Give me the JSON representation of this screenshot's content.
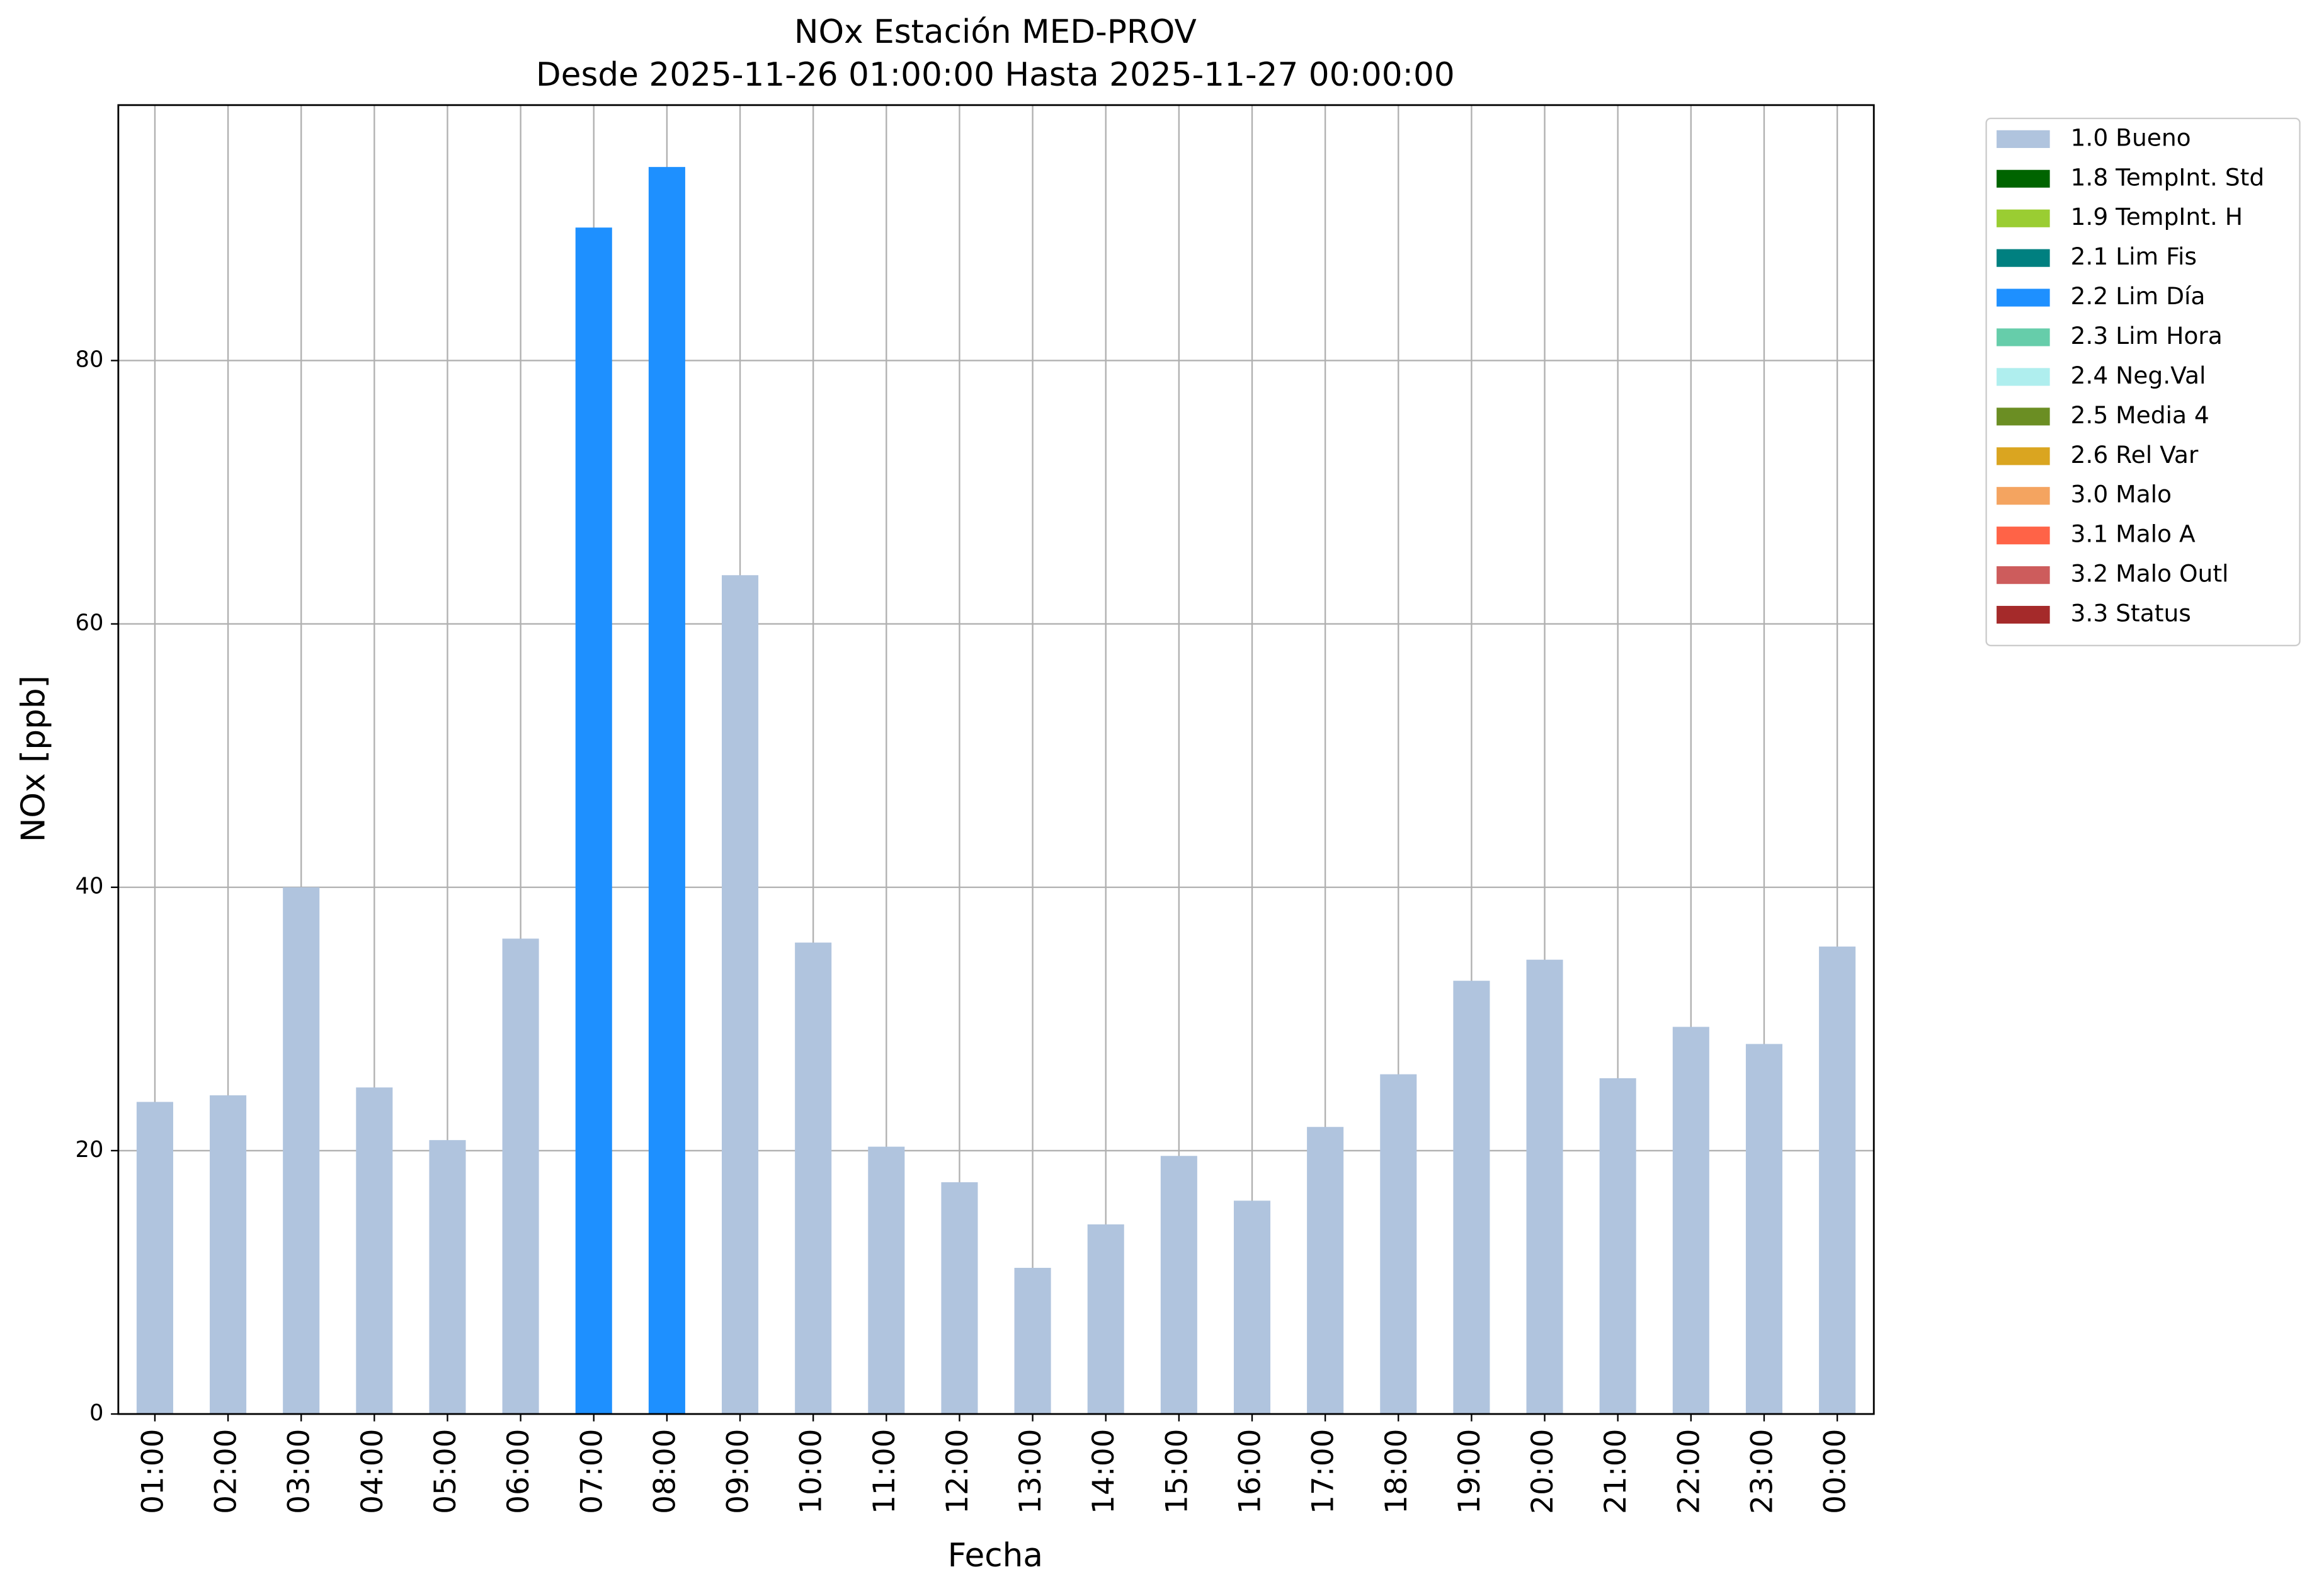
{
  "chart_data": {
    "type": "bar",
    "title": "NOx Estación MED-PROV",
    "subtitle": "Desde 2025-11-26 01:00:00 Hasta 2025-11-27 00:00:00",
    "x_label": "Fecha",
    "y_label": "NOx [ppb]",
    "categories": [
      "01:00",
      "02:00",
      "03:00",
      "04:00",
      "05:00",
      "06:00",
      "07:00",
      "08:00",
      "09:00",
      "10:00",
      "11:00",
      "12:00",
      "13:00",
      "14:00",
      "15:00",
      "16:00",
      "17:00",
      "18:00",
      "19:00",
      "20:00",
      "21:00",
      "22:00",
      "23:00",
      "00:00"
    ],
    "series": [
      {
        "name": "1.0 Bueno",
        "color": "#b0c4de",
        "values": [
          23.7,
          24.2,
          40.0,
          24.8,
          20.8,
          36.1,
          null,
          null,
          63.7,
          35.8,
          20.3,
          17.6,
          11.1,
          14.4,
          19.6,
          16.2,
          21.8,
          25.8,
          32.9,
          34.5,
          25.5,
          29.4,
          28.1,
          35.5
        ]
      },
      {
        "name": "1.8 TempInt. Std",
        "color": "#006400",
        "values": [
          null,
          null,
          null,
          null,
          null,
          null,
          null,
          null,
          null,
          null,
          null,
          null,
          null,
          null,
          null,
          null,
          null,
          null,
          null,
          null,
          null,
          null,
          null,
          null
        ]
      },
      {
        "name": "1.9 TempInt. H",
        "color": "#9acd32",
        "values": [
          null,
          null,
          null,
          null,
          null,
          null,
          null,
          null,
          null,
          null,
          null,
          null,
          null,
          null,
          null,
          null,
          null,
          null,
          null,
          null,
          null,
          null,
          null,
          null
        ]
      },
      {
        "name": "2.1 Lim Fis",
        "color": "#008080",
        "values": [
          null,
          null,
          null,
          null,
          null,
          null,
          null,
          null,
          null,
          null,
          null,
          null,
          null,
          null,
          null,
          null,
          null,
          null,
          null,
          null,
          null,
          null,
          null,
          null
        ]
      },
      {
        "name": "2.2 Lim Día",
        "color": "#1e90ff",
        "values": [
          null,
          null,
          null,
          null,
          null,
          null,
          90.1,
          94.7,
          null,
          null,
          null,
          null,
          null,
          null,
          null,
          null,
          null,
          null,
          null,
          null,
          null,
          null,
          null,
          null
        ]
      },
      {
        "name": "2.3 Lim Hora",
        "color": "#66cdaa",
        "values": [
          null,
          null,
          null,
          null,
          null,
          null,
          null,
          null,
          null,
          null,
          null,
          null,
          null,
          null,
          null,
          null,
          null,
          null,
          null,
          null,
          null,
          null,
          null,
          null
        ]
      },
      {
        "name": "2.4 Neg.Val",
        "color": "#afeeee",
        "values": [
          null,
          null,
          null,
          null,
          null,
          null,
          null,
          null,
          null,
          null,
          null,
          null,
          null,
          null,
          null,
          null,
          null,
          null,
          null,
          null,
          null,
          null,
          null,
          null
        ]
      },
      {
        "name": "2.5 Media 4",
        "color": "#6b8e23",
        "values": [
          null,
          null,
          null,
          null,
          null,
          null,
          null,
          null,
          null,
          null,
          null,
          null,
          null,
          null,
          null,
          null,
          null,
          null,
          null,
          null,
          null,
          null,
          null,
          null
        ]
      },
      {
        "name": "2.6 Rel Var",
        "color": "#daa520",
        "values": [
          null,
          null,
          null,
          null,
          null,
          null,
          null,
          null,
          null,
          null,
          null,
          null,
          null,
          null,
          null,
          null,
          null,
          null,
          null,
          null,
          null,
          null,
          null,
          null
        ]
      },
      {
        "name": "3.0 Malo",
        "color": "#f4a460",
        "values": [
          null,
          null,
          null,
          null,
          null,
          null,
          null,
          null,
          null,
          null,
          null,
          null,
          null,
          null,
          null,
          null,
          null,
          null,
          null,
          null,
          null,
          null,
          null,
          null
        ]
      },
      {
        "name": "3.1 Malo A",
        "color": "#ff6347",
        "values": [
          null,
          null,
          null,
          null,
          null,
          null,
          null,
          null,
          null,
          null,
          null,
          null,
          null,
          null,
          null,
          null,
          null,
          null,
          null,
          null,
          null,
          null,
          null,
          null
        ]
      },
      {
        "name": "3.2 Malo Outl",
        "color": "#cd5c5c",
        "values": [
          null,
          null,
          null,
          null,
          null,
          null,
          null,
          null,
          null,
          null,
          null,
          null,
          null,
          null,
          null,
          null,
          null,
          null,
          null,
          null,
          null,
          null,
          null,
          null
        ]
      },
      {
        "name": "3.3 Status",
        "color": "#a52a2a",
        "values": [
          null,
          null,
          null,
          null,
          null,
          null,
          null,
          null,
          null,
          null,
          null,
          null,
          null,
          null,
          null,
          null,
          null,
          null,
          null,
          null,
          null,
          null,
          null,
          null
        ]
      }
    ],
    "ylim": [
      0,
      99.4
    ],
    "yticks": [
      0,
      20,
      40,
      60,
      80
    ],
    "grid": true,
    "legend": "outside-right"
  }
}
